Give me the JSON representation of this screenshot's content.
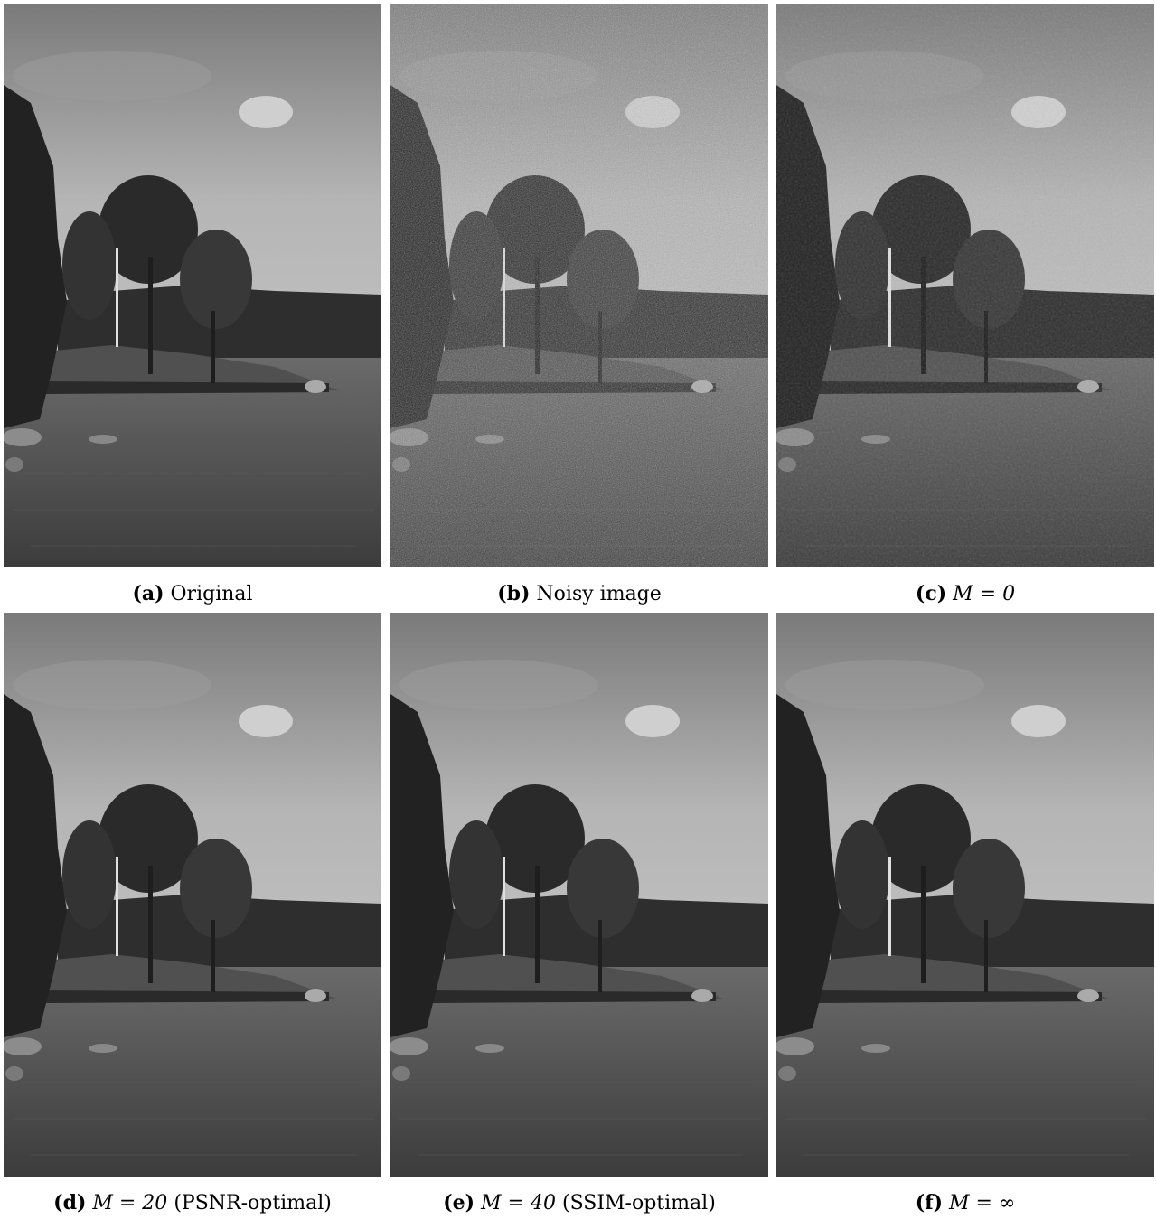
{
  "panels": [
    {
      "tag": "(a)",
      "text": "Original",
      "math": ""
    },
    {
      "tag": "(b)",
      "text": "Noisy image",
      "math": ""
    },
    {
      "tag": "(c)",
      "text": "",
      "math": "M = 0"
    },
    {
      "tag": "(d)",
      "text": "(PSNR-optimal)",
      "math": "M = 20"
    },
    {
      "tag": "(e)",
      "text": "(SSIM-optimal)",
      "math": "M = 40"
    },
    {
      "tag": "(f)",
      "text": "",
      "math": "M = ∞"
    }
  ]
}
